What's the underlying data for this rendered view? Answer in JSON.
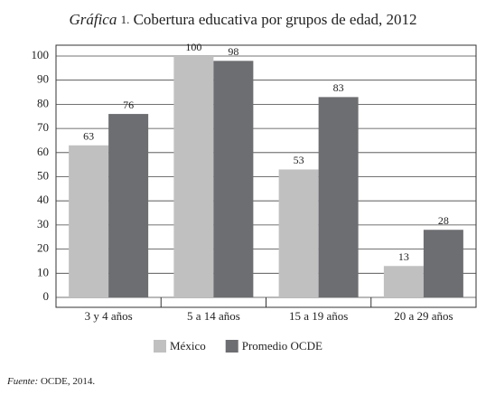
{
  "chart_data": {
    "type": "bar",
    "title_label": "Gráfica",
    "title_number": "1.",
    "title": "Cobertura educativa por grupos de edad, 2012",
    "categories": [
      "3 y 4 años",
      "5 a 14 años",
      "15 a 19 años",
      "20 a 29 años"
    ],
    "series": [
      {
        "name": "México",
        "color": "#c0c0c0",
        "values": [
          63,
          100,
          53,
          13
        ]
      },
      {
        "name": "Promedio OCDE",
        "color": "#6d6e71",
        "values": [
          76,
          98,
          83,
          28
        ]
      }
    ],
    "ylim": [
      0,
      100
    ],
    "yticks": [
      0,
      10,
      20,
      30,
      40,
      50,
      60,
      70,
      80,
      90,
      100
    ],
    "grid": true,
    "source_label": "Fuente:",
    "source": "OCDE, 2014."
  }
}
